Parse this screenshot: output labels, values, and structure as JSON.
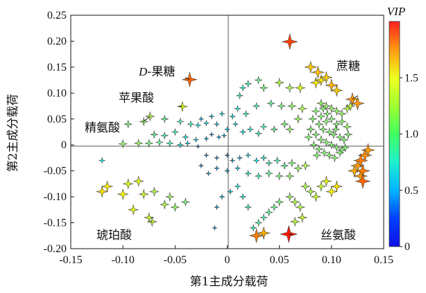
{
  "chart_data": {
    "type": "scatter",
    "xlabel": "第1主成分载荷",
    "ylabel": "第2主成分载荷",
    "xlim": [
      -0.15,
      0.15
    ],
    "ylim": [
      -0.2,
      0.25
    ],
    "xticks": [
      "-0.15",
      "-0.10",
      "-0.05",
      "0",
      "0.05",
      "0.10",
      "0.15"
    ],
    "yticks": [
      "-0.20",
      "-0.15",
      "-0.10",
      "-0.05",
      "0",
      "0.05",
      "0.10",
      "0.15",
      "0.20",
      "0.25"
    ],
    "grid": false,
    "marker": "four-point-star, size and color by VIP",
    "colorbar": {
      "title": "VIP",
      "range": [
        0,
        2.0
      ],
      "ticks": [
        "0",
        "0.5",
        "1.0",
        "1.5"
      ],
      "colormap": "jet"
    },
    "annotations": [
      {
        "text": "D-果糖",
        "italic_prefix": "D",
        "rest": "-果糖",
        "point": [
          -0.036,
          0.126
        ]
      },
      {
        "text": "苹果酸",
        "point": [
          -0.043,
          0.074
        ]
      },
      {
        "text": "精氨酸",
        "point": [
          -0.074,
          0.055
        ]
      },
      {
        "text": "蔗糖",
        "point": [
          0.12,
          0.088
        ]
      },
      {
        "text": "琥珀酸",
        "point": [
          -0.072,
          -0.148
        ]
      },
      {
        "text": "丝氨酸",
        "point": [
          0.059,
          -0.172
        ]
      }
    ],
    "points": [
      [
        0.06,
        0.199,
        1.62
      ],
      [
        -0.036,
        0.126,
        1.55
      ],
      [
        0.08,
        0.15,
        1.35
      ],
      [
        0.087,
        0.14,
        1.38
      ],
      [
        0.09,
        0.125,
        1.3
      ],
      [
        0.095,
        0.13,
        1.35
      ],
      [
        0.085,
        0.12,
        1.28
      ],
      [
        0.1,
        0.115,
        1.4
      ],
      [
        0.105,
        0.105,
        1.35
      ],
      [
        0.07,
        0.11,
        1.2
      ],
      [
        0.06,
        0.11,
        1.1
      ],
      [
        0.05,
        0.12,
        1.1
      ],
      [
        0.035,
        0.11,
        1.0
      ],
      [
        0.03,
        0.125,
        0.95
      ],
      [
        0.02,
        0.118,
        0.9
      ],
      [
        0.012,
        0.095,
        0.85
      ],
      [
        0.015,
        0.11,
        0.8
      ],
      [
        -0.043,
        0.074,
        1.2
      ],
      [
        -0.074,
        0.055,
        1.12
      ],
      [
        -0.06,
        0.05,
        0.95
      ],
      [
        -0.045,
        0.045,
        0.9
      ],
      [
        -0.035,
        0.04,
        0.85
      ],
      [
        -0.028,
        0.038,
        0.75
      ],
      [
        -0.02,
        0.042,
        0.7
      ],
      [
        -0.01,
        0.04,
        0.65
      ],
      [
        0.0,
        0.03,
        0.7
      ],
      [
        0.008,
        0.04,
        0.7
      ],
      [
        0.015,
        0.025,
        0.75
      ],
      [
        0.022,
        0.03,
        0.8
      ],
      [
        0.03,
        0.022,
        0.85
      ],
      [
        0.035,
        0.035,
        0.9
      ],
      [
        0.045,
        0.03,
        0.95
      ],
      [
        0.055,
        0.04,
        1.0
      ],
      [
        0.06,
        0.03,
        1.05
      ],
      [
        0.068,
        0.05,
        1.05
      ],
      [
        0.072,
        0.07,
        1.1
      ],
      [
        0.062,
        0.075,
        1.05
      ],
      [
        0.052,
        0.075,
        1.0
      ],
      [
        0.042,
        0.08,
        0.95
      ],
      [
        0.028,
        0.075,
        0.9
      ],
      [
        0.018,
        0.06,
        0.85
      ],
      [
        0.01,
        0.07,
        0.8
      ],
      [
        0.005,
        0.055,
        0.75
      ],
      [
        -0.005,
        0.06,
        0.7
      ],
      [
        -0.015,
        0.055,
        0.65
      ],
      [
        -0.025,
        0.05,
        0.6
      ],
      [
        -0.095,
        0.04,
        1.0
      ],
      [
        -0.08,
        0.045,
        1.05
      ],
      [
        -0.07,
        0.02,
        0.95
      ],
      [
        -0.06,
        0.018,
        0.9
      ],
      [
        -0.05,
        0.025,
        0.85
      ],
      [
        -0.04,
        0.015,
        0.8
      ],
      [
        -0.03,
        0.01,
        0.7
      ],
      [
        -0.02,
        0.012,
        0.6
      ],
      [
        -0.015,
        0.02,
        0.55
      ],
      [
        -0.008,
        0.015,
        0.55
      ],
      [
        -0.003,
        0.018,
        0.6
      ],
      [
        -0.1,
        0.002,
        1.05
      ],
      [
        -0.085,
        0.003,
        1.05
      ],
      [
        -0.075,
        0.003,
        1.0
      ],
      [
        -0.065,
        0.005,
        0.95
      ],
      [
        -0.055,
        0.003,
        0.9
      ],
      [
        -0.045,
        0.0,
        0.8
      ],
      [
        -0.038,
        0.003,
        0.7
      ],
      [
        -0.028,
        -0.003,
        0.45
      ],
      [
        -0.12,
        -0.03,
        0.75
      ],
      [
        -0.02,
        -0.02,
        0.55
      ],
      [
        -0.01,
        -0.025,
        0.55
      ],
      [
        0.0,
        -0.02,
        0.55
      ],
      [
        0.005,
        -0.03,
        0.6
      ],
      [
        0.012,
        -0.025,
        0.65
      ],
      [
        0.02,
        -0.02,
        0.7
      ],
      [
        0.028,
        -0.03,
        0.75
      ],
      [
        0.035,
        -0.025,
        0.8
      ],
      [
        0.04,
        -0.035,
        0.85
      ],
      [
        0.048,
        -0.03,
        0.9
      ],
      [
        0.055,
        -0.04,
        0.95
      ],
      [
        0.062,
        -0.035,
        1.0
      ],
      [
        0.068,
        -0.045,
        1.05
      ],
      [
        0.075,
        -0.04,
        1.1
      ],
      [
        0.06,
        -0.06,
        1.05
      ],
      [
        0.05,
        -0.06,
        1.0
      ],
      [
        0.04,
        -0.055,
        0.95
      ],
      [
        0.03,
        -0.06,
        0.85
      ],
      [
        0.02,
        -0.055,
        0.8
      ],
      [
        0.01,
        -0.045,
        0.7
      ],
      [
        0.0,
        -0.05,
        0.65
      ],
      [
        -0.01,
        -0.045,
        0.6
      ],
      [
        -0.018,
        -0.055,
        0.6
      ],
      [
        -0.025,
        -0.04,
        0.55
      ],
      [
        -0.12,
        -0.09,
        1.3
      ],
      [
        -0.115,
        -0.08,
        1.28
      ],
      [
        -0.1,
        -0.095,
        1.25
      ],
      [
        -0.095,
        -0.075,
        1.2
      ],
      [
        -0.085,
        -0.07,
        1.2
      ],
      [
        -0.08,
        -0.095,
        1.15
      ],
      [
        -0.07,
        -0.09,
        1.1
      ],
      [
        -0.06,
        -0.115,
        1.1
      ],
      [
        -0.05,
        -0.12,
        1.05
      ],
      [
        -0.04,
        -0.11,
        1.0
      ],
      [
        -0.09,
        -0.125,
        1.2
      ],
      [
        -0.075,
        -0.14,
        1.15
      ],
      [
        -0.072,
        -0.148,
        1.15
      ],
      [
        -0.055,
        -0.1,
        1.05
      ],
      [
        0.06,
        -0.1,
        1.05
      ],
      [
        0.065,
        -0.11,
        1.1
      ],
      [
        0.07,
        -0.12,
        1.1
      ],
      [
        0.072,
        -0.14,
        1.15
      ],
      [
        0.065,
        -0.148,
        1.12
      ],
      [
        0.059,
        -0.172,
        1.7
      ],
      [
        0.05,
        -0.11,
        1.0
      ],
      [
        0.045,
        -0.12,
        0.95
      ],
      [
        0.04,
        -0.13,
        0.95
      ],
      [
        0.035,
        -0.14,
        0.9
      ],
      [
        0.03,
        -0.15,
        0.9
      ],
      [
        0.025,
        -0.16,
        0.85
      ],
      [
        0.02,
        -0.12,
        0.85
      ],
      [
        0.015,
        -0.1,
        0.8
      ],
      [
        0.01,
        -0.08,
        0.75
      ],
      [
        0.003,
        -0.09,
        0.7
      ],
      [
        -0.005,
        -0.1,
        0.65
      ],
      [
        -0.01,
        -0.12,
        0.6
      ],
      [
        -0.012,
        -0.16,
        0.55
      ],
      [
        0.028,
        -0.175,
        1.5
      ],
      [
        0.035,
        -0.17,
        1.4
      ],
      [
        0.08,
        -0.09,
        1.1
      ],
      [
        0.085,
        -0.1,
        1.15
      ],
      [
        0.075,
        -0.08,
        1.1
      ],
      [
        0.09,
        -0.08,
        1.15
      ],
      [
        0.095,
        -0.07,
        1.2
      ],
      [
        0.1,
        -0.09,
        1.25
      ],
      [
        0.105,
        -0.08,
        1.3
      ],
      [
        0.125,
        -0.04,
        1.45
      ],
      [
        0.128,
        -0.03,
        1.5
      ],
      [
        0.13,
        -0.05,
        1.5
      ],
      [
        0.132,
        -0.02,
        1.48
      ],
      [
        0.135,
        -0.01,
        1.45
      ],
      [
        0.13,
        -0.07,
        1.55
      ],
      [
        0.122,
        -0.05,
        1.42
      ],
      [
        0.128,
        -0.06,
        1.45
      ],
      [
        0.09,
        0.08,
        1.05
      ],
      [
        0.095,
        0.075,
        1.05
      ],
      [
        0.1,
        0.07,
        1.05
      ],
      [
        0.105,
        0.065,
        1.05
      ],
      [
        0.11,
        0.06,
        1.05
      ],
      [
        0.115,
        0.07,
        1.1
      ],
      [
        0.12,
        0.088,
        1.45
      ],
      [
        0.125,
        0.08,
        1.45
      ],
      [
        0.118,
        0.075,
        1.15
      ],
      [
        0.085,
        0.065,
        1.02
      ],
      [
        0.09,
        0.055,
        1.02
      ],
      [
        0.095,
        0.045,
        1.02
      ],
      [
        0.1,
        0.05,
        1.02
      ],
      [
        0.105,
        0.04,
        1.02
      ],
      [
        0.11,
        0.045,
        1.02
      ],
      [
        0.115,
        0.035,
        1.05
      ],
      [
        0.088,
        0.04,
        1.02
      ],
      [
        0.092,
        0.03,
        1.02
      ],
      [
        0.098,
        0.025,
        1.02
      ],
      [
        0.102,
        0.02,
        1.02
      ],
      [
        0.108,
        0.015,
        1.02
      ],
      [
        0.112,
        0.01,
        1.02
      ],
      [
        0.085,
        0.02,
        1.02
      ],
      [
        0.09,
        0.01,
        1.02
      ],
      [
        0.095,
        0.005,
        1.02
      ],
      [
        0.1,
        0.0,
        1.02
      ],
      [
        0.105,
        -0.005,
        1.02
      ],
      [
        0.11,
        -0.01,
        1.02
      ],
      [
        0.083,
        0.0,
        1.02
      ],
      [
        0.088,
        -0.008,
        1.02
      ],
      [
        0.093,
        -0.015,
        1.02
      ],
      [
        0.098,
        -0.02,
        1.02
      ],
      [
        0.103,
        -0.025,
        1.02
      ],
      [
        0.108,
        -0.015,
        1.02
      ],
      [
        0.113,
        -0.005,
        1.02
      ],
      [
        0.08,
        0.03,
        1.02
      ],
      [
        0.082,
        0.05,
        1.02
      ],
      [
        0.078,
        0.015,
        1.02
      ],
      [
        0.096,
        0.06,
        1.02
      ],
      [
        0.104,
        0.03,
        1.02
      ],
      [
        0.086,
        -0.02,
        1.02
      ],
      [
        0.092,
        0.07,
        1.02
      ],
      [
        0.116,
        0.02,
        1.02
      ]
    ]
  }
}
